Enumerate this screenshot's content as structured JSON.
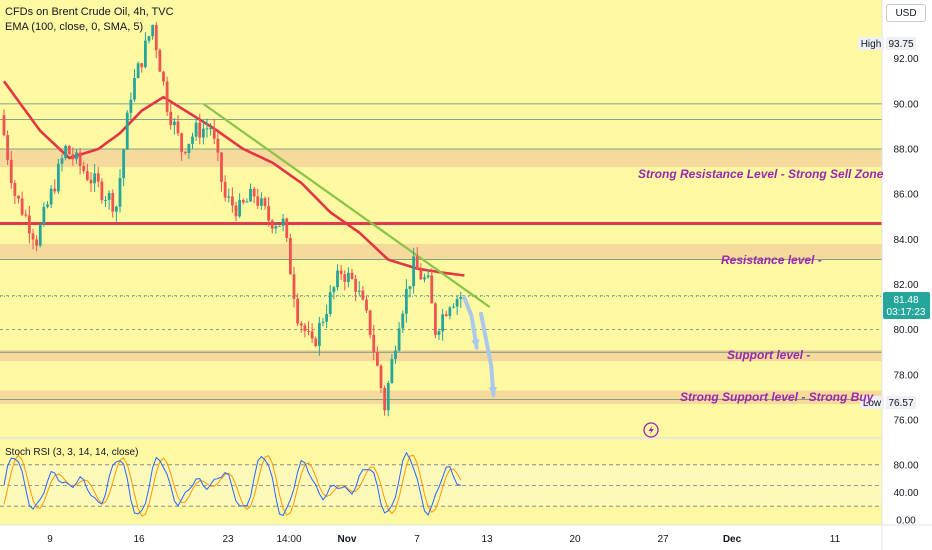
{
  "header": {
    "title": "CFDs on Brent Crude Oil, 4h, TVC",
    "indicator": "EMA (100, close, 0, SMA, 5)",
    "currency_button": "USD"
  },
  "colors": {
    "background": "#fdf9a2",
    "zone_fill": "#f4d59a",
    "bull": "#26a69a",
    "bear": "#ef5350",
    "ema": "#e33544",
    "resistance_line": "#e03a4f",
    "trendline": "#8bc34a",
    "annotation": "#9c27b0",
    "rsi_k": "#2962ff",
    "rsi_d": "#ff9800",
    "price_tag": "#26a69a"
  },
  "annotations": {
    "strong_resistance": "Strong Resistance Level - Strong Sell Zone",
    "resistance": "Resistance level -",
    "support": "Support level -",
    "strong_support": "Strong Support level - Strong Buy"
  },
  "price_tags": {
    "high_label": "High",
    "high_value": "93.75",
    "low_label": "Low",
    "low_value": "76.57",
    "last_price": "81.48",
    "countdown": "03:17:23"
  },
  "rsi": {
    "title": "Stoch RSI (3, 3, 14, 14, close)",
    "ticks": [
      "80.00",
      "40.00",
      "0.00"
    ]
  },
  "chart_data": {
    "type": "candlestick",
    "symbol": "CFDs on Brent Crude Oil",
    "interval": "4h",
    "currency": "USD",
    "y_ticks": [
      "92.00",
      "90.00",
      "88.00",
      "86.00",
      "84.00",
      "82.00",
      "80.00",
      "78.00",
      "76.00"
    ],
    "x_ticks": [
      "9",
      "16",
      "23",
      "14:00",
      "Nov",
      "7",
      "13",
      "20",
      "27",
      "Dec",
      "11"
    ],
    "ylim": [
      75.2,
      94.6
    ],
    "high": 93.75,
    "low": 76.57,
    "last": 81.48,
    "price_path": [
      [
        0,
        89.5
      ],
      [
        2,
        86.0
      ],
      [
        5,
        84.0
      ],
      [
        9,
        88.0
      ],
      [
        13,
        86.5
      ],
      [
        16,
        85.5
      ],
      [
        18,
        90.5
      ],
      [
        21,
        93.5
      ],
      [
        23,
        90.0
      ],
      [
        25,
        88.0
      ],
      [
        27,
        88.8
      ],
      [
        29,
        89.0
      ],
      [
        31,
        85.8
      ],
      [
        33,
        85.3
      ],
      [
        35,
        86.0
      ],
      [
        37,
        84.9
      ],
      [
        39,
        84.7
      ],
      [
        41,
        80.7
      ],
      [
        43,
        79.2
      ],
      [
        45,
        81.0
      ],
      [
        47,
        82.6
      ],
      [
        49,
        82.0
      ],
      [
        51,
        80.0
      ],
      [
        53,
        76.6
      ],
      [
        55,
        80.5
      ],
      [
        57,
        82.8
      ],
      [
        59,
        82.0
      ],
      [
        60,
        80.0
      ],
      [
        62,
        81.3
      ],
      [
        63.3,
        81.48
      ]
    ],
    "ema_path": [
      [
        0,
        91.0
      ],
      [
        5,
        88.8
      ],
      [
        9,
        87.6
      ],
      [
        13,
        88.0
      ],
      [
        16,
        88.7
      ],
      [
        19,
        89.7
      ],
      [
        22,
        90.3
      ],
      [
        25,
        89.7
      ],
      [
        29,
        88.9
      ],
      [
        33,
        88.0
      ],
      [
        37,
        87.4
      ],
      [
        41,
        86.5
      ],
      [
        45,
        85.2
      ],
      [
        49,
        84.3
      ],
      [
        53,
        83.1
      ],
      [
        57,
        82.7
      ],
      [
        61,
        82.5
      ],
      [
        63.5,
        82.4
      ]
    ],
    "horizontal_levels": [
      90.0,
      89.3,
      88.0,
      84.7,
      83.1,
      81.5,
      80.0,
      79.0,
      76.9
    ],
    "zones": [
      {
        "name": "Strong Resistance Level - Strong Sell Zone",
        "from": 87.2,
        "to": 88.0
      },
      {
        "name": "Resistance level -",
        "from": 83.1,
        "to": 83.8
      },
      {
        "name": "Support level -",
        "from": 78.6,
        "to": 79.1
      },
      {
        "name": "Strong Support level - Strong Buy",
        "from": 76.7,
        "to": 77.3
      }
    ],
    "resistance_line": 84.7,
    "trendline": [
      [
        27.5,
        90.0
      ],
      [
        67,
        81.0
      ]
    ],
    "projection_arrows": [
      [
        [
          63.5,
          81.4
        ],
        [
          64.5,
          80.6
        ],
        [
          65.2,
          79.2
        ]
      ],
      [
        [
          65.8,
          80.7
        ],
        [
          67.2,
          78.4
        ],
        [
          67.5,
          77.1
        ]
      ]
    ],
    "stoch_rsi_range": [
      0,
      100
    ]
  }
}
